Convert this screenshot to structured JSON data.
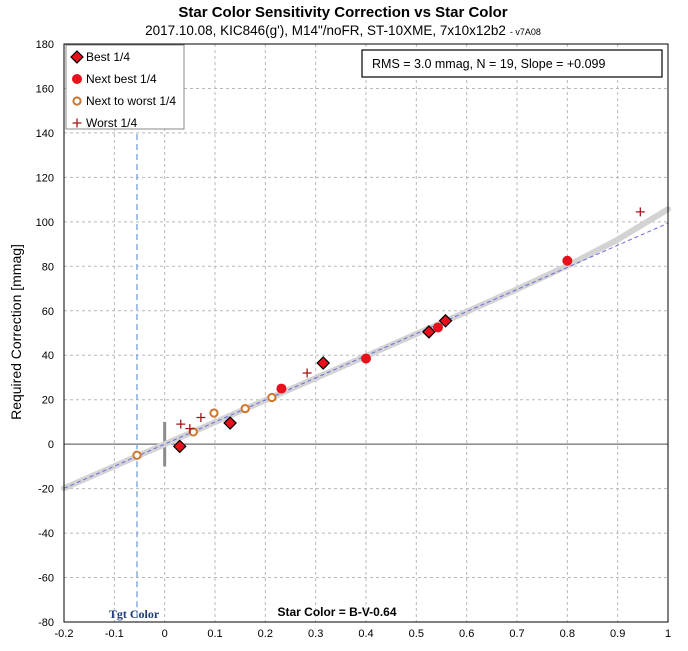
{
  "chart_data": {
    "type": "scatter",
    "title": "Star Color Sensitivity Correction vs Star Color",
    "subtitle": "2017.10.08, KIC846(g'), M14\"/noFR, ST-10XME, 7x10x12b2",
    "version": "- v7A08",
    "xlabel": "Star Color = B-V-0.64",
    "ylabel": "Required Correction [mmag]",
    "xlim": [
      -0.2,
      1.0
    ],
    "ylim": [
      -80,
      180
    ],
    "x_ticks": [
      "-0.2",
      "-0.1",
      "0",
      "0.1",
      "0.2",
      "0.3",
      "0.4",
      "0.5",
      "0.6",
      "0.7",
      "0.8",
      "0.9",
      "1"
    ],
    "y_ticks": [
      "-80",
      "-60",
      "-40",
      "-20",
      "0",
      "20",
      "40",
      "60",
      "80",
      "100",
      "120",
      "140",
      "160",
      "180"
    ],
    "grid": true,
    "legend_position": "top-left",
    "stats_box": "RMS = 3.0 mmag, N = 19, Slope = +0.099",
    "target_label": "Tgt Color",
    "target_color_x": -0.055,
    "series": [
      {
        "name": "Best 1/4",
        "marker": "diamond",
        "color": "#e8101a",
        "stroke": "#000000",
        "points": [
          [
            0.03,
            -1
          ],
          [
            0.13,
            9.5
          ],
          [
            0.315,
            36.5
          ],
          [
            0.525,
            50.5
          ],
          [
            0.558,
            55.5
          ]
        ]
      },
      {
        "name": "Next best 1/4",
        "marker": "dot",
        "color": "#e8101a",
        "stroke": "#e8101a",
        "points": [
          [
            0.232,
            25
          ],
          [
            0.4,
            38.5
          ],
          [
            0.543,
            52.5
          ],
          [
            0.8,
            82.5
          ]
        ]
      },
      {
        "name": "Next to worst 1/4",
        "marker": "ring",
        "color": "#ffffff",
        "stroke": "#d0762a",
        "points": [
          [
            -0.055,
            -5
          ],
          [
            0.057,
            5.5
          ],
          [
            0.098,
            14
          ],
          [
            0.16,
            16
          ],
          [
            0.213,
            21
          ]
        ]
      },
      {
        "name": "Worst 1/4",
        "marker": "plus",
        "color": "#a01818",
        "stroke": "#a01818",
        "points": [
          [
            0.032,
            9
          ],
          [
            0.05,
            7
          ],
          [
            0.072,
            12
          ],
          [
            0.283,
            32
          ],
          [
            0.945,
            104.5
          ]
        ]
      }
    ],
    "fit_curve": {
      "color": "#d3d3d3",
      "points": [
        [
          -0.2,
          -19.8
        ],
        [
          0.0,
          0.0
        ],
        [
          0.2,
          19.8
        ],
        [
          0.4,
          39.6
        ],
        [
          0.6,
          59.6
        ],
        [
          0.7,
          69.7
        ],
        [
          0.8,
          80.2
        ],
        [
          0.9,
          92.0
        ],
        [
          1.0,
          105.7
        ]
      ]
    },
    "linear_fit": {
      "color": "#6a6ae0",
      "slope": 99.4,
      "intercept": 0
    }
  }
}
